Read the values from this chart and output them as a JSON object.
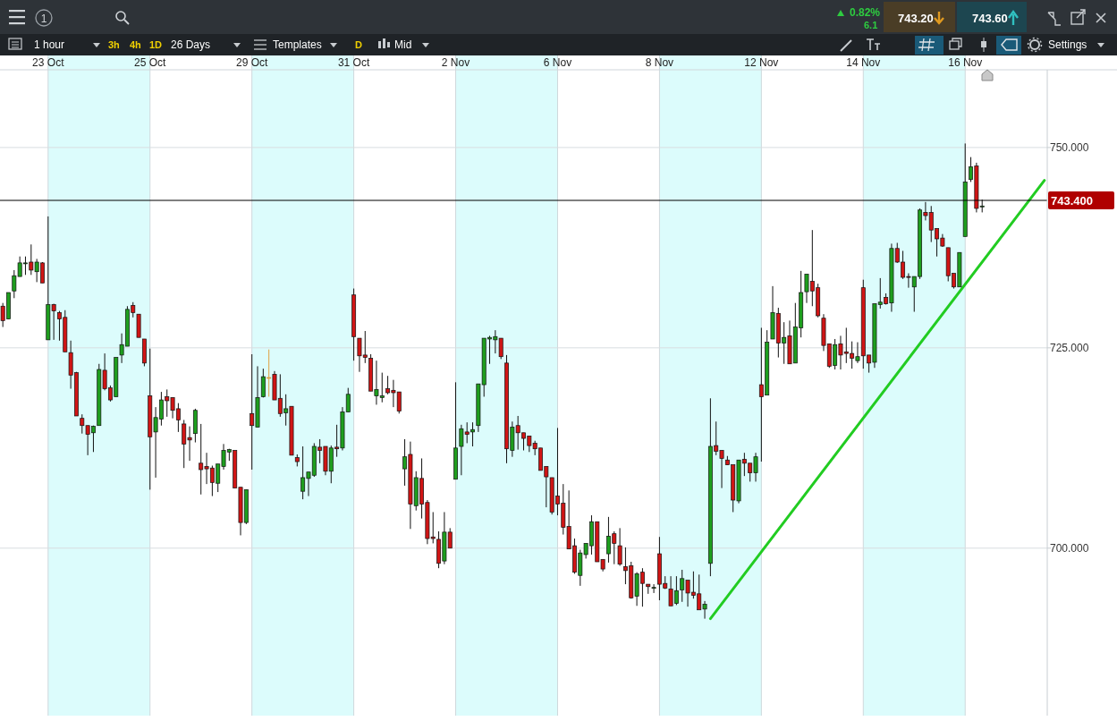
{
  "chart_data": {
    "type": "candlestick",
    "categories": [
      null,
      null,
      null,
      null,
      null,
      null,
      null,
      null,
      "23 Oct",
      null,
      null,
      null,
      null,
      null,
      null,
      null,
      null,
      null,
      null,
      null,
      null,
      null,
      null,
      null,
      null,
      null,
      "25 Oct",
      null,
      null,
      null,
      null,
      null,
      null,
      null,
      null,
      null,
      null,
      null,
      null,
      null,
      null,
      null,
      null,
      null,
      "29 Oct",
      null,
      null,
      null,
      null,
      null,
      null,
      null,
      null,
      null,
      null,
      null,
      null,
      null,
      null,
      null,
      null,
      null,
      "31 Oct",
      null,
      null,
      null,
      null,
      null,
      null,
      null,
      null,
      null,
      null,
      null,
      null,
      null,
      null,
      null,
      null,
      null,
      "2 Nov",
      null,
      null,
      null,
      null,
      null,
      null,
      null,
      null,
      null,
      null,
      null,
      null,
      null,
      null,
      null,
      null,
      null,
      "6 Nov",
      null,
      null,
      null,
      null,
      null,
      null,
      null,
      null,
      null,
      null,
      null,
      null,
      null,
      null,
      null,
      null,
      null,
      "8 Nov",
      null,
      null,
      null,
      null,
      null,
      null,
      null,
      null,
      null,
      null,
      null,
      null,
      null,
      null,
      null,
      null,
      null,
      "12 Nov",
      null,
      null,
      null,
      null,
      null,
      null,
      null,
      null,
      null,
      null,
      null,
      null,
      null,
      null,
      null,
      null,
      null,
      "14 Nov",
      null,
      null,
      null,
      null,
      null,
      null,
      null,
      null,
      null,
      null,
      null,
      null,
      null,
      null,
      null,
      null,
      null,
      "16 Nov",
      null,
      null,
      null,
      null,
      null,
      null,
      null,
      null,
      null,
      null,
      null,
      null,
      null,
      null
    ],
    "ohlc": [
      [
        730.2,
        730.6,
        727.6,
        728.4
      ],
      [
        728.6,
        731.9,
        728.6,
        731.9
      ],
      [
        732.1,
        734.7,
        731.2,
        734.0
      ],
      [
        733.9,
        736.4,
        733.9,
        735.6
      ],
      [
        735.5,
        736.4,
        734.1,
        735.6
      ],
      [
        735.7,
        737.9,
        734.1,
        734.7
      ],
      [
        734.5,
        736.1,
        733.2,
        735.7
      ],
      [
        735.6,
        735.7,
        733.1,
        733.1
      ],
      [
        726.0,
        741.4,
        726.0,
        730.4
      ],
      [
        730.4,
        730.5,
        726.0,
        729.6
      ],
      [
        729.4,
        729.6,
        725.9,
        728.6
      ],
      [
        728.8,
        729.7,
        724.5,
        724.5
      ],
      [
        724.4,
        725.9,
        719.9,
        721.6
      ],
      [
        721.9,
        722.0,
        716.5,
        716.5
      ],
      [
        716.2,
        716.7,
        714.3,
        715.3
      ],
      [
        715.3,
        715.3,
        711.6,
        714.2
      ],
      [
        714.4,
        715.3,
        712.0,
        715.2
      ],
      [
        715.3,
        723.0,
        715.3,
        722.3
      ],
      [
        722.2,
        724.3,
        719.7,
        719.9
      ],
      [
        720.0,
        720.3,
        718.3,
        718.5
      ],
      [
        718.9,
        723.8,
        718.9,
        723.8
      ],
      [
        724.1,
        726.8,
        723.1,
        725.4
      ],
      [
        725.2,
        730.2,
        725.2,
        729.8
      ],
      [
        730.3,
        730.7,
        728.8,
        729.4
      ],
      [
        729.2,
        729.2,
        726.3,
        726.3
      ],
      [
        726.1,
        726.1,
        722.7,
        723.1
      ],
      [
        719.0,
        724.9,
        707.3,
        713.9
      ],
      [
        714.5,
        717.6,
        708.8,
        716.3
      ],
      [
        716.1,
        719.5,
        715.3,
        718.5
      ],
      [
        718.9,
        719.8,
        716.4,
        718.4
      ],
      [
        718.8,
        718.8,
        716.2,
        717.2
      ],
      [
        717.4,
        718.1,
        714.5,
        716.0
      ],
      [
        715.5,
        716.0,
        710.0,
        713.0
      ],
      [
        713.8,
        715.2,
        710.9,
        713.5
      ],
      [
        714.3,
        717.4,
        713.2,
        717.2
      ],
      [
        710.6,
        715.5,
        706.7,
        709.8
      ],
      [
        710.2,
        711.9,
        708.0,
        709.9
      ],
      [
        710.0,
        710.3,
        706.5,
        708.2
      ],
      [
        708.1,
        710.5,
        707.0,
        710.5
      ],
      [
        710.2,
        713.0,
        709.8,
        712.2
      ],
      [
        712.0,
        712.4,
        710.9,
        712.3
      ],
      [
        712.2,
        712.2,
        707.5,
        707.5
      ],
      [
        707.6,
        707.6,
        701.6,
        703.2
      ],
      [
        703.2,
        707.3,
        703.0,
        707.3
      ],
      [
        716.8,
        724.2,
        709.8,
        715.3
      ],
      [
        715.1,
        722.7,
        715.1,
        718.8
      ],
      [
        718.9,
        722.4,
        718.8,
        721.4
      ],
      [
        721.3,
        724.8,
        718.9,
        721.3
      ],
      [
        721.7,
        722.1,
        718.5,
        718.5
      ],
      [
        718.7,
        721.7,
        716.4,
        716.8
      ],
      [
        716.9,
        719.2,
        715.3,
        717.4
      ],
      [
        717.7,
        717.7,
        711.6,
        711.6
      ],
      [
        711.3,
        711.7,
        710.2,
        710.8
      ],
      [
        707.1,
        712.7,
        706.1,
        708.8
      ],
      [
        708.7,
        709.5,
        706.5,
        709.5
      ],
      [
        709.1,
        713.1,
        708.9,
        712.7
      ],
      [
        712.6,
        713.6,
        710.6,
        712.2
      ],
      [
        712.7,
        712.7,
        709.1,
        709.6
      ],
      [
        709.6,
        712.8,
        708.1,
        712.5
      ],
      [
        712.6,
        715.4,
        711.4,
        712.4
      ],
      [
        712.5,
        717.6,
        712.2,
        717.0
      ],
      [
        717.0,
        720.0,
        717.0,
        719.2
      ],
      [
        731.6,
        732.4,
        723.4,
        726.4
      ],
      [
        726.2,
        726.2,
        722.0,
        724.0
      ],
      [
        724.1,
        727.1,
        723.1,
        723.8
      ],
      [
        723.7,
        724.2,
        719.6,
        719.6
      ],
      [
        719.0,
        723.4,
        717.9,
        719.8
      ],
      [
        718.8,
        721.9,
        718.2,
        719.0
      ],
      [
        719.9,
        721.5,
        719.2,
        719.4
      ],
      [
        719.7,
        721.0,
        717.6,
        719.4
      ],
      [
        719.5,
        719.5,
        716.8,
        717.1
      ],
      [
        709.9,
        713.6,
        707.8,
        711.4
      ],
      [
        711.7,
        713.3,
        702.4,
        705.5
      ],
      [
        705.3,
        709.6,
        704.7,
        708.8
      ],
      [
        708.7,
        711.2,
        703.7,
        705.5
      ],
      [
        705.7,
        706.0,
        700.5,
        701.2
      ],
      [
        701.4,
        704.5,
        700.6,
        701.2
      ],
      [
        701.1,
        702.1,
        697.5,
        698.1
      ],
      [
        698.4,
        704.5,
        698.0,
        702.0
      ],
      [
        702.0,
        702.5,
        700.0,
        700.0
      ],
      [
        708.6,
        720.7,
        708.6,
        712.5
      ],
      [
        712.7,
        715.4,
        709.1,
        714.9
      ],
      [
        714.5,
        715.7,
        713.1,
        714.2
      ],
      [
        714.5,
        715.7,
        712.7,
        714.8
      ],
      [
        715.3,
        720.5,
        714.5,
        720.5
      ],
      [
        720.4,
        726.2,
        718.9,
        726.2
      ],
      [
        726.1,
        726.5,
        723.0,
        726.3
      ],
      [
        726.0,
        727.2,
        724.3,
        726.4
      ],
      [
        726.2,
        726.2,
        723.6,
        723.9
      ],
      [
        723.1,
        724.1,
        710.6,
        712.4
      ],
      [
        712.2,
        715.8,
        711.4,
        715.1
      ],
      [
        715.3,
        716.5,
        712.3,
        714.4
      ],
      [
        714.4,
        714.4,
        712.2,
        713.7
      ],
      [
        714.0,
        714.0,
        712.0,
        712.8
      ],
      [
        713.1,
        713.4,
        711.6,
        712.4
      ],
      [
        712.5,
        712.5,
        709.7,
        709.7
      ],
      [
        710.2,
        710.2,
        705.1,
        708.9
      ],
      [
        708.8,
        708.8,
        704.2,
        704.5
      ],
      [
        706.5,
        715.0,
        704.1,
        705.5
      ],
      [
        705.6,
        708.0,
        701.7,
        702.6
      ],
      [
        702.7,
        707.2,
        699.9,
        699.9
      ],
      [
        700.3,
        701.2,
        696.8,
        697.0
      ],
      [
        696.6,
        699.8,
        695.3,
        699.4
      ],
      [
        699.2,
        700.6,
        698.7,
        700.6
      ],
      [
        700.3,
        704.1,
        699.2,
        703.3
      ],
      [
        703.3,
        703.3,
        698.3,
        698.3
      ],
      [
        698.6,
        698.6,
        697.1,
        697.4
      ],
      [
        699.3,
        703.9,
        698.2,
        701.5
      ],
      [
        701.8,
        702.1,
        698.0,
        700.6
      ],
      [
        700.3,
        702.5,
        697.8,
        698.0
      ],
      [
        697.7,
        700.1,
        695.5,
        697.2
      ],
      [
        697.8,
        698.3,
        693.7,
        693.8
      ],
      [
        694.0,
        697.0,
        692.8,
        696.8
      ],
      [
        697.0,
        697.5,
        692.7,
        695.6
      ],
      [
        695.5,
        695.5,
        694.3,
        695.2
      ],
      [
        695.0,
        695.5,
        694.4,
        695.1
      ],
      [
        699.3,
        701.4,
        693.5,
        695.5
      ],
      [
        695.6,
        696.5,
        694.9,
        695.0
      ],
      [
        694.9,
        696.5,
        692.8,
        692.8
      ],
      [
        693.1,
        696.5,
        692.9,
        694.7
      ],
      [
        694.8,
        697.3,
        693.3,
        696.2
      ],
      [
        696.0,
        696.0,
        692.7,
        694.4
      ],
      [
        694.5,
        697.1,
        693.7,
        694.1
      ],
      [
        694.3,
        696.7,
        692.3,
        692.3
      ],
      [
        692.4,
        693.4,
        691.2,
        693.0
      ],
      [
        698.1,
        718.7,
        696.5,
        712.7
      ],
      [
        712.8,
        715.8,
        711.6,
        712.1
      ],
      [
        712.2,
        712.2,
        707.5,
        711.2
      ],
      [
        711.0,
        711.5,
        710.4,
        710.4
      ],
      [
        710.4,
        710.4,
        704.5,
        706.0
      ],
      [
        705.9,
        711.0,
        705.6,
        711.0
      ],
      [
        711.1,
        711.9,
        709.0,
        710.6
      ],
      [
        710.6,
        710.6,
        708.3,
        709.4
      ],
      [
        709.4,
        711.9,
        708.3,
        711.4
      ],
      [
        720.4,
        727.5,
        710.8,
        718.9
      ],
      [
        719.1,
        727.2,
        719.1,
        725.7
      ],
      [
        726.1,
        732.7,
        726.1,
        729.4
      ],
      [
        729.3,
        730.0,
        723.8,
        725.6
      ],
      [
        725.6,
        728.2,
        723.0,
        726.3
      ],
      [
        726.5,
        728.4,
        723.0,
        723.0
      ],
      [
        723.1,
        730.6,
        723.1,
        727.6
      ],
      [
        727.5,
        734.6,
        726.3,
        731.9
      ],
      [
        732.0,
        734.2,
        730.6,
        734.2
      ],
      [
        733.3,
        739.7,
        730.2,
        732.1
      ],
      [
        732.5,
        733.0,
        728.8,
        729.0
      ],
      [
        728.7,
        729.2,
        724.6,
        725.3
      ],
      [
        725.5,
        725.5,
        722.5,
        722.7
      ],
      [
        722.8,
        726.1,
        722.3,
        725.4
      ],
      [
        725.5,
        726.5,
        722.3,
        724.1
      ],
      [
        724.5,
        727.5,
        723.1,
        724.3
      ],
      [
        724.3,
        725.8,
        722.4,
        723.7
      ],
      [
        723.4,
        725.7,
        723.1,
        723.9
      ],
      [
        732.5,
        733.5,
        722.4,
        724.0
      ],
      [
        724.1,
        724.1,
        721.9,
        723.1
      ],
      [
        723.2,
        730.5,
        722.5,
        730.5
      ],
      [
        730.4,
        733.7,
        729.9,
        730.7
      ],
      [
        731.3,
        731.8,
        730.4,
        730.5
      ],
      [
        730.6,
        738.0,
        729.5,
        737.4
      ],
      [
        737.4,
        738.1,
        735.6,
        735.7
      ],
      [
        735.7,
        737.1,
        733.6,
        733.8
      ],
      [
        733.9,
        734.3,
        732.5,
        733.8
      ],
      [
        732.6,
        733.9,
        729.5,
        733.9
      ],
      [
        733.9,
        742.4,
        733.6,
        742.2
      ],
      [
        741.9,
        743.2,
        740.9,
        741.5
      ],
      [
        741.9,
        742.7,
        738.2,
        739.7
      ],
      [
        739.9,
        739.9,
        736.4,
        738.6
      ],
      [
        738.7,
        739.2,
        737.6,
        737.7
      ],
      [
        737.5,
        737.5,
        733.3,
        734.0
      ],
      [
        734.3,
        734.3,
        732.4,
        732.6
      ],
      [
        732.6,
        736.9,
        732.6,
        736.9
      ],
      [
        738.9,
        750.5,
        738.9,
        745.7
      ],
      [
        746.0,
        748.8,
        745.7,
        747.6
      ],
      [
        747.7,
        748.1,
        741.9,
        742.4
      ],
      [
        742.6,
        743.5,
        741.9,
        742.7
      ],
      null,
      null,
      null,
      null,
      null,
      null,
      null,
      null,
      null,
      null,
      null
    ],
    "colors": [
      "#d01515",
      "#1e9e1e",
      "#1e9e1e",
      "#1e9e1e",
      "#1e9e1e",
      "#d01515",
      "#1e9e1e",
      "#d01515",
      "#1e9e1e",
      "#d01515",
      "#d01515",
      "#d01515",
      "#d01515",
      "#d01515",
      "#d01515",
      "#d01515",
      "#1e9e1e",
      "#1e9e1e",
      "#d01515",
      "#d01515",
      "#1e9e1e",
      "#1e9e1e",
      "#1e9e1e",
      "#d01515",
      "#d01515",
      "#d01515",
      "#d01515",
      "#1e9e1e",
      "#1e9e1e",
      "#d01515",
      "#d01515",
      "#d01515",
      "#d01515",
      "#d01515",
      "#1e9e1e",
      "#d01515",
      "#d01515",
      "#d01515",
      "#1e9e1e",
      "#1e9e1e",
      "#1e9e1e",
      "#d01515",
      "#d01515",
      "#1e9e1e",
      "#d01515",
      "#1e9e1e",
      "#1e9e1e",
      "#e0a040",
      "#d01515",
      "#d01515",
      "#1e9e1e",
      "#d01515",
      "#d01515",
      "#1e9e1e",
      "#1e9e1e",
      "#1e9e1e",
      "#d01515",
      "#d01515",
      "#1e9e1e",
      "#d01515",
      "#1e9e1e",
      "#1e9e1e",
      "#d01515",
      "#d01515",
      "#d01515",
      "#d01515",
      "#1e9e1e",
      "#1e9e1e",
      "#d01515",
      "#d01515",
      "#d01515",
      "#1e9e1e",
      "#d01515",
      "#1e9e1e",
      "#d01515",
      "#d01515",
      "#d01515",
      "#d01515",
      "#1e9e1e",
      "#d01515",
      "#1e9e1e",
      "#1e9e1e",
      "#d01515",
      "#1e9e1e",
      "#1e9e1e",
      "#1e9e1e",
      "#1e9e1e",
      "#1e9e1e",
      "#d01515",
      "#d01515",
      "#1e9e1e",
      "#d01515",
      "#d01515",
      "#d01515",
      "#d01515",
      "#d01515",
      "#d01515",
      "#d01515",
      "#d01515",
      "#d01515",
      "#d01515",
      "#d01515",
      "#1e9e1e",
      "#1e9e1e",
      "#1e9e1e",
      "#d01515",
      "#d01515",
      "#1e9e1e",
      "#d01515",
      "#d01515",
      "#d01515",
      "#d01515",
      "#1e9e1e",
      "#d01515",
      "#d01515",
      "#1e9e1e",
      "#d01515",
      "#d01515",
      "#d01515",
      "#1e9e1e",
      "#1e9e1e",
      "#d01515",
      "#d01515",
      "#d01515",
      "#1e9e1e",
      "#1e9e1e",
      "#d01515",
      "#d01515",
      "#d01515",
      "#d01515",
      "#1e9e1e",
      "#d01515",
      "#d01515",
      "#1e9e1e",
      "#d01515",
      "#1e9e1e",
      "#1e9e1e",
      "#d01515",
      "#1e9e1e",
      "#d01515",
      "#1e9e1e",
      "#1e9e1e",
      "#1e9e1e",
      "#d01515",
      "#d01515",
      "#d01515",
      "#d01515",
      "#1e9e1e",
      "#d01515",
      "#d01515",
      "#d01515",
      "#1e9e1e",
      "#d01515",
      "#d01515",
      "#1e9e1e",
      "#1e9e1e",
      "#d01515",
      "#1e9e1e",
      "#d01515",
      "#d01515",
      "#d01515",
      "#1e9e1e",
      "#1e9e1e",
      "#d01515",
      "#d01515",
      "#d01515",
      "#d01515",
      "#d01515",
      "#d01515",
      "#1e9e1e",
      "#1e9e1e",
      "#1e9e1e",
      "#d01515",
      "#1e9e1e",
      null,
      null,
      null,
      null,
      null,
      null,
      null,
      null,
      null,
      null,
      null
    ],
    "series": [
      {
        "type": "line",
        "color": "#22cc22",
        "values": [
          null,
          null,
          null,
          null,
          null,
          null,
          null,
          null,
          null,
          null,
          null,
          null,
          null,
          null,
          null,
          null,
          null,
          null,
          null,
          null,
          null,
          null,
          null,
          null,
          null,
          null,
          null,
          null,
          null,
          null,
          null,
          null,
          null,
          null,
          null,
          null,
          null,
          null,
          null,
          null,
          null,
          null,
          null,
          null,
          null,
          null,
          null,
          null,
          null,
          null,
          null,
          null,
          null,
          null,
          null,
          null,
          null,
          null,
          null,
          null,
          null,
          null,
          null,
          null,
          null,
          null,
          null,
          null,
          null,
          null,
          null,
          null,
          null,
          null,
          null,
          null,
          null,
          null,
          null,
          null,
          null,
          null,
          null,
          null,
          null,
          null,
          null,
          null,
          null,
          null,
          null,
          null,
          null,
          null,
          null,
          null,
          null,
          null,
          null,
          null,
          null,
          null,
          null,
          null,
          null,
          null,
          null,
          null,
          null,
          null,
          null,
          null,
          null,
          null,
          null,
          null,
          null,
          null,
          null,
          null,
          null,
          null,
          null,
          null,
          null,
          691.2,
          null,
          null,
          null,
          null,
          null,
          null,
          null,
          null,
          null,
          null,
          null,
          null,
          null,
          null,
          null,
          null,
          null,
          null,
          null,
          null,
          null,
          null,
          null,
          null,
          null,
          null,
          null,
          null,
          null,
          null,
          null,
          null,
          null,
          null,
          null,
          null,
          null,
          null,
          null,
          null,
          null,
          null,
          null,
          null,
          null,
          null,
          null,
          null,
          null,
          null,
          null,
          null,
          null,
          null,
          null,
          null,
          null,
          null,
          745.9
        ]
      }
    ],
    "ylim": [
      679.1,
      759.7
    ],
    "yticks": [
      {
        "value": 700,
        "label": "700.000"
      },
      {
        "value": 725,
        "label": "725.000"
      },
      {
        "value": 750,
        "label": "750.000"
      }
    ],
    "grid": true,
    "ref_lines": [
      {
        "axis": "y",
        "value": 743.4,
        "label": "743.400",
        "color": "#000000"
      }
    ],
    "bands": [
      {
        "axis": "x",
        "from": "23 Oct",
        "to": "25 Oct",
        "color": "#dcfcfc"
      },
      {
        "axis": "x",
        "from": "29 Oct",
        "to": "31 Oct",
        "color": "#dcfcfc"
      },
      {
        "axis": "x",
        "from": "2 Nov",
        "to": "6 Nov",
        "color": "#dcfcfc"
      },
      {
        "axis": "x",
        "from": "8 Nov",
        "to": "12 Nov",
        "color": "#dcfcfc"
      },
      {
        "axis": "x",
        "from": "14 Nov",
        "to": "16 Nov",
        "color": "#dcfcfc"
      }
    ],
    "annotations": [
      "1",
      "0.82%",
      "6.1",
      "743.20",
      "743.60",
      "1 hour",
      "3h",
      "4h",
      "1D",
      "26 Days",
      "Templates",
      "D",
      "Mid",
      "Settings"
    ]
  }
}
